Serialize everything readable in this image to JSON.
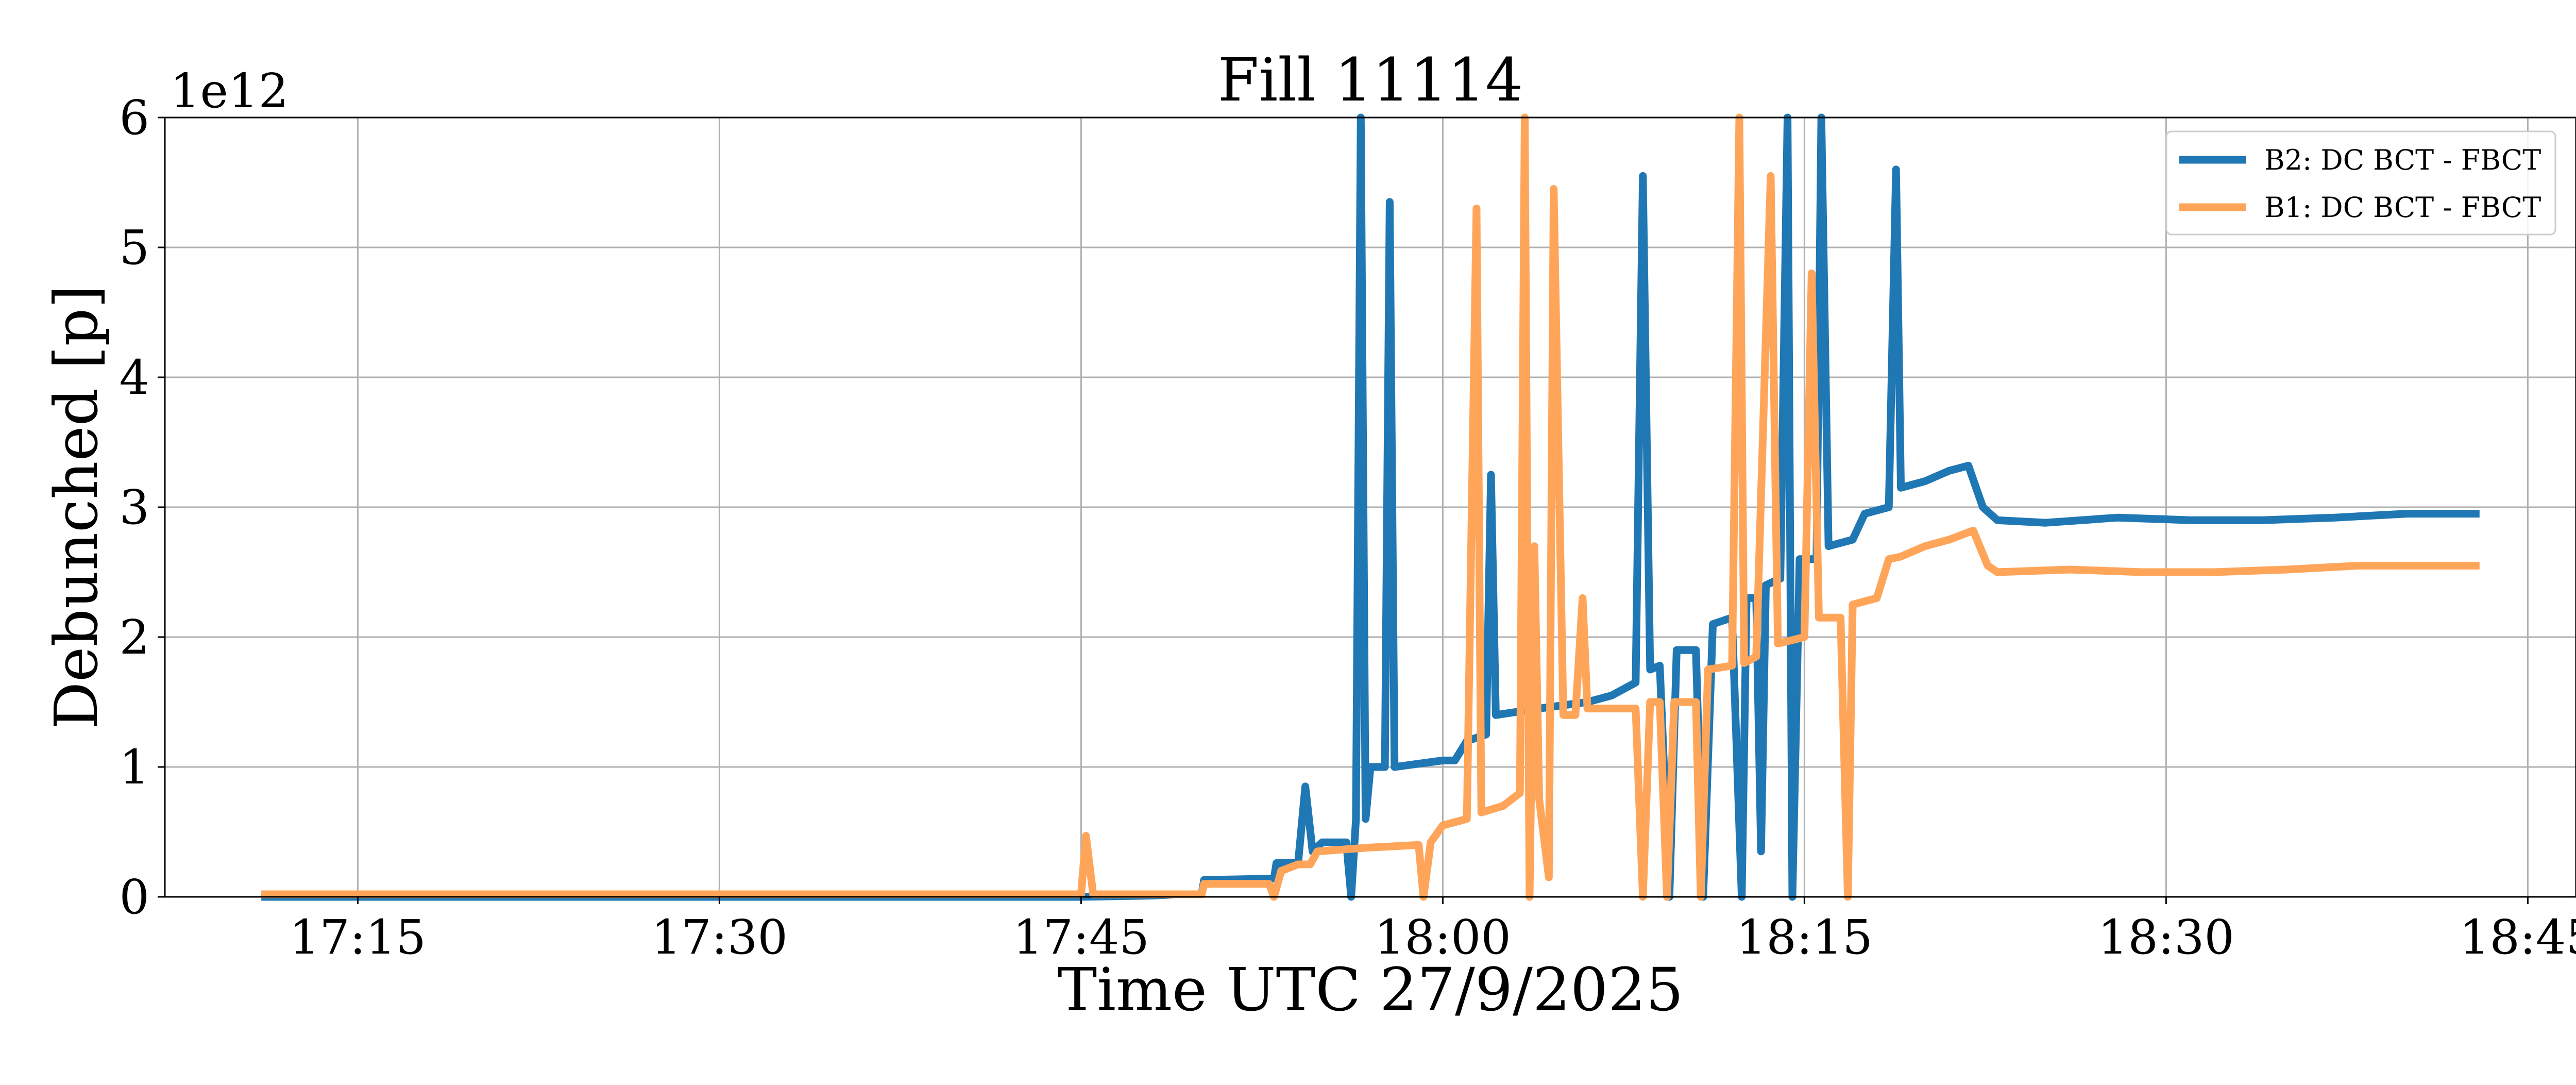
{
  "chart_data": {
    "type": "line",
    "title": "Fill 11114",
    "xlabel": "Time UTC 27/9/2025",
    "ylabel": "Debunched [p]",
    "y_offset_label": "1e12",
    "xlim": [
      "17:07",
      "18:47"
    ],
    "ylim": [
      0,
      6
    ],
    "y_unit_multiplier": 1000000000000.0,
    "x_ticks": [
      "17:15",
      "17:30",
      "17:45",
      "18:00",
      "18:15",
      "18:30",
      "18:45"
    ],
    "y_ticks": [
      "0",
      "1",
      "2",
      "3",
      "4",
      "5",
      "6"
    ],
    "grid": true,
    "legend_position": "top-right",
    "series": [
      {
        "name": "B2: DC BCT - FBCT",
        "color": "#1f77b4",
        "points": [
          [
            "17:11",
            0.0
          ],
          [
            "17:45",
            0.0
          ],
          [
            "17:48",
            0.01
          ],
          [
            "17:49",
            0.02
          ],
          [
            "17:50",
            0.02
          ],
          [
            "17:50.1",
            0.13
          ],
          [
            "17:53",
            0.14
          ],
          [
            "17:53.1",
            0.26
          ],
          [
            "17:54",
            0.26
          ],
          [
            "17:54.3",
            0.85
          ],
          [
            "17:54.6",
            0.35
          ],
          [
            "17:55",
            0.42
          ],
          [
            "17:56",
            0.42
          ],
          [
            "17:56.2",
            0.0
          ],
          [
            "17:56.4",
            0.6
          ],
          [
            "17:56.6",
            6.0
          ],
          [
            "17:56.8",
            0.6
          ],
          [
            "17:57",
            1.0
          ],
          [
            "17:57.6",
            1.0
          ],
          [
            "17:57.8",
            5.35
          ],
          [
            "17:58",
            1.0
          ],
          [
            "18:00",
            1.05
          ],
          [
            "18:00.5",
            1.05
          ],
          [
            "18:01",
            1.2
          ],
          [
            "18:01.8",
            1.25
          ],
          [
            "18:02",
            3.25
          ],
          [
            "18:02.2",
            1.4
          ],
          [
            "18:04",
            1.45
          ],
          [
            "18:06",
            1.5
          ],
          [
            "18:07",
            1.55
          ],
          [
            "18:08",
            1.65
          ],
          [
            "18:08.3",
            5.55
          ],
          [
            "18:08.6",
            1.75
          ],
          [
            "18:09",
            1.78
          ],
          [
            "18:09.4",
            0.0
          ],
          [
            "18:09.7",
            1.9
          ],
          [
            "18:10.5",
            1.9
          ],
          [
            "18:10.8",
            0.0
          ],
          [
            "18:11.2",
            2.1
          ],
          [
            "18:12",
            2.15
          ],
          [
            "18:12.4",
            0.0
          ],
          [
            "18:12.6",
            2.3
          ],
          [
            "18:13",
            2.3
          ],
          [
            "18:13.2",
            0.35
          ],
          [
            "18:13.4",
            2.4
          ],
          [
            "18:14",
            2.45
          ],
          [
            "18:14.3",
            6.0
          ],
          [
            "18:14.5",
            0.0
          ],
          [
            "18:14.8",
            2.6
          ],
          [
            "18:15.5",
            2.6
          ],
          [
            "18:15.7",
            6.0
          ],
          [
            "18:16",
            2.7
          ],
          [
            "18:17",
            2.75
          ],
          [
            "18:17.5",
            2.95
          ],
          [
            "18:18.5",
            3.0
          ],
          [
            "18:18.8",
            5.6
          ],
          [
            "18:19",
            3.15
          ],
          [
            "18:20",
            3.2
          ],
          [
            "18:21",
            3.28
          ],
          [
            "18:21.8",
            3.32
          ],
          [
            "18:22.4",
            3.0
          ],
          [
            "18:23",
            2.9
          ],
          [
            "18:25",
            2.88
          ],
          [
            "18:28",
            2.92
          ],
          [
            "18:31",
            2.9
          ],
          [
            "18:34",
            2.9
          ],
          [
            "18:37",
            2.92
          ],
          [
            "18:40",
            2.95
          ],
          [
            "18:43",
            2.95
          ]
        ]
      },
      {
        "name": "B1: DC BCT - FBCT",
        "color": "#ffa55a",
        "points": [
          [
            "17:11",
            0.02
          ],
          [
            "17:44",
            0.02
          ],
          [
            "17:45",
            0.02
          ],
          [
            "17:45.2",
            0.47
          ],
          [
            "17:45.5",
            0.02
          ],
          [
            "17:48",
            0.02
          ],
          [
            "17:50",
            0.02
          ],
          [
            "17:50.1",
            0.1
          ],
          [
            "17:52.8",
            0.1
          ],
          [
            "17:53",
            0.0
          ],
          [
            "17:53.3",
            0.2
          ],
          [
            "17:54",
            0.25
          ],
          [
            "17:54.5",
            0.25
          ],
          [
            "17:54.8",
            0.35
          ],
          [
            "17:57",
            0.38
          ],
          [
            "17:59",
            0.4
          ],
          [
            "17:59.2",
            0.0
          ],
          [
            "17:59.5",
            0.42
          ],
          [
            "18:00",
            0.55
          ],
          [
            "18:01",
            0.6
          ],
          [
            "18:01.4",
            5.3
          ],
          [
            "18:01.6",
            0.65
          ],
          [
            "18:02.5",
            0.7
          ],
          [
            "18:03.2",
            0.8
          ],
          [
            "18:03.4",
            6.0
          ],
          [
            "18:03.6",
            0.0
          ],
          [
            "18:03.8",
            2.7
          ],
          [
            "18:04",
            0.75
          ],
          [
            "18:04.4",
            0.15
          ],
          [
            "18:04.6",
            5.45
          ],
          [
            "18:05",
            1.4
          ],
          [
            "18:05.5",
            1.4
          ],
          [
            "18:05.8",
            2.3
          ],
          [
            "18:06",
            1.45
          ],
          [
            "18:07",
            1.45
          ],
          [
            "18:08",
            1.45
          ],
          [
            "18:08.3",
            0.0
          ],
          [
            "18:08.6",
            1.5
          ],
          [
            "18:09",
            1.5
          ],
          [
            "18:09.3",
            0.0
          ],
          [
            "18:09.6",
            1.5
          ],
          [
            "18:10.5",
            1.5
          ],
          [
            "18:10.7",
            0.0
          ],
          [
            "18:11",
            1.75
          ],
          [
            "18:12",
            1.78
          ],
          [
            "18:12.3",
            6.0
          ],
          [
            "18:12.5",
            1.8
          ],
          [
            "18:13",
            1.85
          ],
          [
            "18:13.6",
            5.55
          ],
          [
            "18:13.9",
            1.95
          ],
          [
            "18:15",
            2.0
          ],
          [
            "18:15.3",
            4.8
          ],
          [
            "18:15.6",
            2.15
          ],
          [
            "18:16.5",
            2.15
          ],
          [
            "18:16.8",
            0.0
          ],
          [
            "18:17",
            2.25
          ],
          [
            "18:18",
            2.3
          ],
          [
            "18:18.5",
            2.6
          ],
          [
            "18:19",
            2.62
          ],
          [
            "18:20",
            2.7
          ],
          [
            "18:21",
            2.75
          ],
          [
            "18:22",
            2.82
          ],
          [
            "18:22.6",
            2.55
          ],
          [
            "18:23",
            2.5
          ],
          [
            "18:26",
            2.52
          ],
          [
            "18:29",
            2.5
          ],
          [
            "18:32",
            2.5
          ],
          [
            "18:35",
            2.52
          ],
          [
            "18:38",
            2.55
          ],
          [
            "18:41",
            2.55
          ],
          [
            "18:43",
            2.55
          ]
        ]
      }
    ]
  }
}
